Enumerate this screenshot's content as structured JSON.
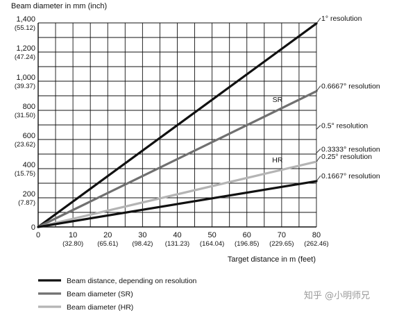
{
  "chart_data": {
    "type": "line",
    "ylabel": "Beam diameter in mm (inch)",
    "xlabel": "Target distance in m (feet)",
    "xlim": [
      0,
      80
    ],
    "ylim": [
      0,
      1400
    ],
    "grid": true,
    "x_ticks": [
      {
        "value": 0,
        "label": "0",
        "sub": ""
      },
      {
        "value": 10,
        "label": "10",
        "sub": "(32.80)"
      },
      {
        "value": 20,
        "label": "20",
        "sub": "(65.61)"
      },
      {
        "value": 30,
        "label": "30",
        "sub": "(98.42)"
      },
      {
        "value": 40,
        "label": "40",
        "sub": "(131.23)"
      },
      {
        "value": 50,
        "label": "50",
        "sub": "(164.04)"
      },
      {
        "value": 60,
        "label": "60",
        "sub": "(196.85)"
      },
      {
        "value": 70,
        "label": "70",
        "sub": "(229.65)"
      },
      {
        "value": 80,
        "label": "80",
        "sub": "(262.46)"
      }
    ],
    "y_ticks": [
      {
        "value": 0,
        "label": "0",
        "sub": ""
      },
      {
        "value": 200,
        "label": "200",
        "sub": "(7.87)"
      },
      {
        "value": 400,
        "label": "400",
        "sub": "(15.75)"
      },
      {
        "value": 600,
        "label": "600",
        "sub": "(23.62)"
      },
      {
        "value": 800,
        "label": "800",
        "sub": "(31.50)"
      },
      {
        "value": 1000,
        "label": "1,000",
        "sub": "(39.37)"
      },
      {
        "value": 1200,
        "label": "1,200",
        "sub": "(47.24)"
      },
      {
        "value": 1400,
        "label": "1,400",
        "sub": "(55.12)"
      }
    ],
    "series": [
      {
        "x": [
          0,
          80
        ],
        "y": [
          0,
          1396
        ],
        "color": "#111111",
        "style": "distance",
        "end_label": "1° resolution"
      },
      {
        "x": [
          0,
          80
        ],
        "y": [
          0,
          931
        ],
        "color": "#707070",
        "style": "sr",
        "end_label": "0.6667° resolution",
        "tag": "SR"
      },
      {
        "x": [
          0,
          80
        ],
        "y": [
          0,
          448
        ],
        "color": "#b4b4b4",
        "style": "hr",
        "end_label": "0.25° resolution",
        "tag": "HR"
      },
      {
        "x": [
          0,
          80
        ],
        "y": [
          0,
          314
        ],
        "color": "#111111",
        "style": "distance",
        "end_label": "0.1667° resolution"
      }
    ],
    "extra_labels": [
      {
        "text": "0.5° resolution",
        "y": 698
      },
      {
        "text": "0.3333° resolution",
        "y": 536
      }
    ],
    "legend": {
      "position": "bottom-left",
      "items": [
        {
          "label": "Beam distance, depending on resolution",
          "color": "#111111"
        },
        {
          "label": "Beam diameter (SR)",
          "color": "#707070"
        },
        {
          "label": "Beam diameter (HR)",
          "color": "#b4b4b4"
        }
      ]
    }
  },
  "watermark": "知乎 @小明师兄"
}
